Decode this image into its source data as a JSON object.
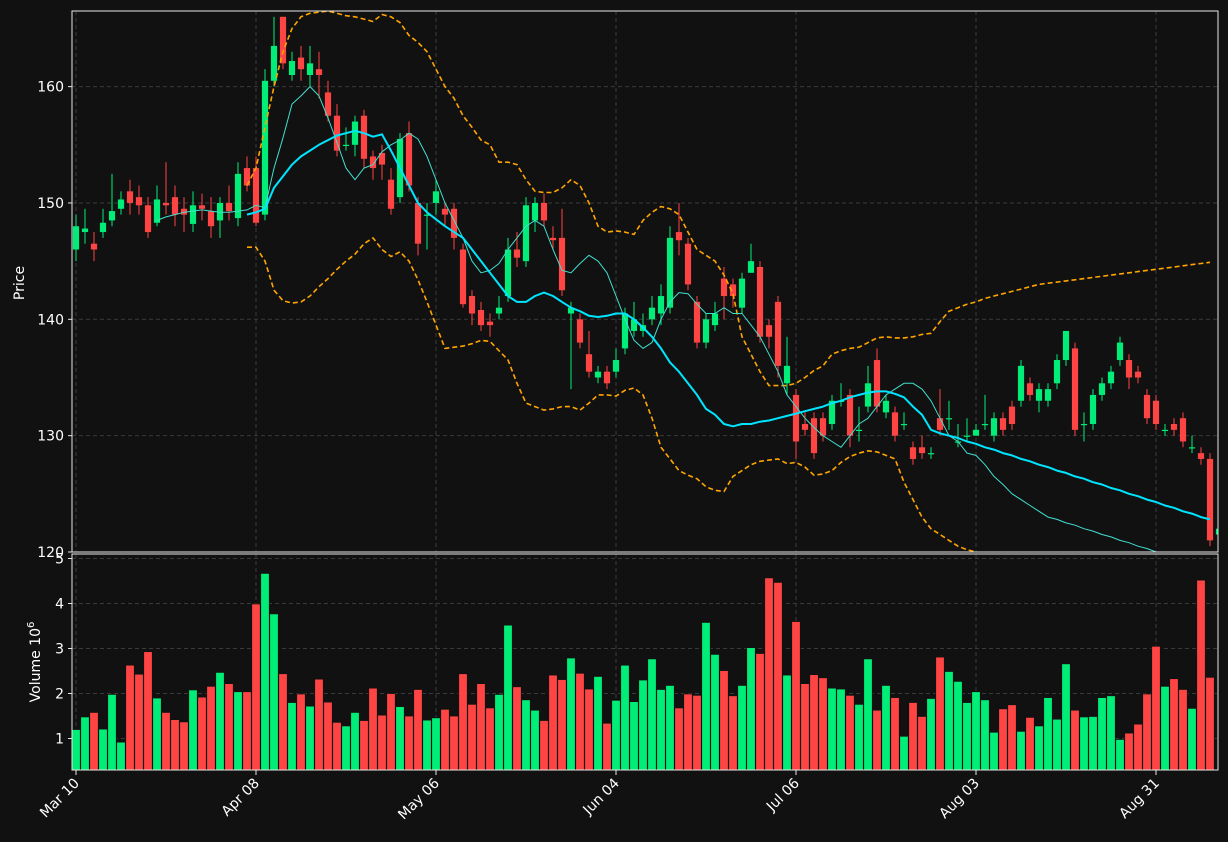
{
  "chart_data": {
    "type": "candlestick",
    "price_panel": {
      "ylabel": "Price",
      "ylim": [
        120,
        166.5
      ],
      "yticks": [
        "120",
        "130",
        "140",
        "150",
        "160"
      ],
      "grid": true
    },
    "volume_panel": {
      "ylabel": "Volume  10",
      "ylabel_exponent": "6",
      "ylim": [
        0.3,
        5.1
      ],
      "yticks": [
        "1",
        "2",
        "3",
        "4",
        "5"
      ],
      "grid": true
    },
    "x_tick_labels": [
      {
        "label": "Mar 10",
        "index": 0
      },
      {
        "label": "Apr 08",
        "index": 20
      },
      {
        "label": "May 06",
        "index": 40
      },
      {
        "label": "Jun 04",
        "index": 60
      },
      {
        "label": "Jul 06",
        "index": 80
      },
      {
        "label": "Aug 03",
        "index": 100
      },
      {
        "label": "Aug 31",
        "index": 120
      }
    ],
    "candles": [
      [
        146.0,
        148.0,
        145.0,
        149.0
      ],
      [
        147.5,
        147.8,
        146.5,
        149.5
      ],
      [
        146.5,
        146.0,
        145.0,
        147.5
      ],
      [
        147.5,
        148.3,
        147.0,
        149.5
      ],
      [
        148.5,
        149.3,
        148.0,
        152.5
      ],
      [
        149.5,
        150.3,
        149.0,
        151.0
      ],
      [
        151.0,
        150.0,
        149.0,
        152.0
      ],
      [
        150.5,
        149.8,
        149.0,
        151.5
      ],
      [
        149.8,
        147.5,
        147.0,
        150.5
      ],
      [
        148.3,
        150.3,
        148.0,
        151.5
      ],
      [
        150.0,
        149.8,
        149.0,
        153.5
      ],
      [
        150.5,
        149.0,
        148.0,
        151.5
      ],
      [
        149.5,
        149.0,
        147.5,
        150.5
      ],
      [
        148.2,
        149.8,
        147.5,
        151.0
      ],
      [
        149.8,
        149.5,
        148.5,
        150.8
      ],
      [
        149.3,
        148.0,
        147.0,
        150.5
      ],
      [
        148.5,
        150.0,
        147.0,
        150.5
      ],
      [
        150.0,
        149.3,
        148.5,
        151.5
      ],
      [
        148.7,
        152.5,
        148.0,
        153.5
      ],
      [
        153.0,
        151.5,
        151.0,
        154.0
      ],
      [
        153.0,
        148.3,
        148.0,
        154.0
      ],
      [
        149.0,
        160.5,
        148.5,
        161.5
      ],
      [
        160.5,
        163.5,
        160.0,
        166.0
      ],
      [
        166.0,
        162.0,
        161.5,
        166.0
      ],
      [
        161.0,
        162.2,
        160.5,
        163.0
      ],
      [
        162.5,
        161.5,
        160.5,
        163.5
      ],
      [
        161.0,
        162.0,
        160.0,
        163.5
      ],
      [
        161.5,
        161.0,
        159.0,
        163.0
      ],
      [
        159.5,
        157.5,
        157.0,
        160.5
      ],
      [
        157.5,
        154.5,
        154.0,
        158.5
      ],
      [
        155.0,
        155.0,
        154.5,
        156.5
      ],
      [
        155.0,
        157.0,
        154.0,
        157.5
      ],
      [
        157.5,
        153.8,
        153.0,
        158.0
      ],
      [
        154.0,
        153.0,
        152.0,
        154.5
      ],
      [
        154.3,
        153.3,
        152.0,
        155.0
      ],
      [
        152.0,
        149.5,
        149.0,
        153.0
      ],
      [
        150.5,
        155.5,
        150.0,
        156.0
      ],
      [
        156.0,
        151.5,
        151.0,
        157.0
      ],
      [
        150.0,
        146.5,
        145.5,
        150.5
      ],
      [
        148.9,
        149.0,
        146.0,
        150.0
      ],
      [
        150.0,
        151.0,
        149.0,
        152.0
      ],
      [
        149.5,
        149.0,
        148.0,
        150.0
      ],
      [
        149.5,
        147.0,
        146.0,
        150.0
      ],
      [
        146.0,
        141.3,
        141.0,
        146.5
      ],
      [
        142.0,
        140.5,
        139.5,
        142.5
      ],
      [
        140.8,
        139.5,
        139.0,
        141.5
      ],
      [
        139.8,
        139.5,
        138.5,
        140.5
      ],
      [
        140.5,
        141.0,
        140.0,
        142.0
      ],
      [
        142.0,
        146.0,
        141.5,
        147.0
      ],
      [
        146.0,
        145.3,
        144.5,
        147.5
      ],
      [
        145.0,
        149.8,
        144.5,
        150.5
      ],
      [
        148.5,
        150.0,
        147.5,
        150.5
      ],
      [
        150.0,
        148.5,
        148.0,
        150.8
      ],
      [
        147.0,
        146.8,
        146.0,
        148.0
      ],
      [
        147.0,
        142.5,
        142.0,
        149.5
      ],
      [
        140.5,
        141.0,
        134.0,
        141.5
      ],
      [
        140.0,
        138.0,
        137.5,
        140.5
      ],
      [
        137.0,
        135.5,
        135.0,
        139.0
      ],
      [
        135.0,
        135.5,
        134.5,
        136.0
      ],
      [
        135.5,
        134.5,
        134.0,
        136.0
      ],
      [
        135.5,
        136.5,
        135.0,
        137.5
      ],
      [
        137.5,
        140.5,
        137.0,
        141.0
      ],
      [
        139.0,
        140.0,
        138.5,
        141.5
      ],
      [
        139.0,
        139.5,
        138.5,
        140.5
      ],
      [
        140.0,
        141.0,
        139.5,
        142.0
      ],
      [
        140.5,
        142.0,
        139.5,
        143.0
      ],
      [
        141.0,
        147.0,
        140.5,
        148.0
      ],
      [
        147.5,
        146.8,
        145.5,
        150.0
      ],
      [
        146.5,
        143.0,
        142.5,
        147.0
      ],
      [
        141.5,
        138.0,
        137.5,
        142.0
      ],
      [
        138.0,
        140.0,
        137.5,
        140.5
      ],
      [
        139.5,
        140.5,
        139.0,
        141.5
      ],
      [
        143.5,
        142.0,
        140.0,
        144.5
      ],
      [
        143.0,
        142.0,
        141.0,
        143.5
      ],
      [
        141.0,
        143.5,
        140.5,
        144.0
      ],
      [
        144.0,
        145.0,
        144.0,
        146.5
      ],
      [
        144.5,
        138.5,
        138.0,
        145.0
      ],
      [
        139.5,
        138.5,
        137.5,
        140.0
      ],
      [
        141.5,
        136.0,
        135.0,
        142.0
      ],
      [
        134.5,
        136.0,
        133.5,
        138.5
      ],
      [
        133.5,
        129.5,
        128.0,
        134.0
      ],
      [
        131.0,
        130.5,
        130.0,
        132.0
      ],
      [
        131.5,
        128.5,
        128.0,
        132.0
      ],
      [
        131.5,
        130.0,
        129.5,
        132.0
      ],
      [
        131.0,
        133.0,
        130.5,
        133.5
      ],
      [
        133.0,
        133.0,
        132.5,
        134.5
      ],
      [
        133.5,
        130.0,
        129.0,
        134.0
      ],
      [
        130.5,
        130.5,
        129.5,
        132.5
      ],
      [
        132.5,
        134.5,
        132.0,
        136.0
      ],
      [
        136.5,
        132.5,
        132.0,
        137.5
      ],
      [
        132.0,
        133.0,
        131.5,
        133.5
      ],
      [
        132.0,
        130.0,
        129.5,
        132.5
      ],
      [
        131.0,
        131.0,
        130.5,
        132.0
      ],
      [
        129.0,
        128.0,
        127.5,
        129.5
      ],
      [
        129.0,
        128.5,
        128.0,
        130.0
      ],
      [
        128.5,
        128.5,
        128.0,
        129.0
      ],
      [
        131.5,
        130.5,
        130.0,
        134.0
      ],
      [
        131.5,
        131.5,
        130.5,
        133.0
      ],
      [
        129.5,
        129.5,
        129.0,
        131.0
      ],
      [
        130.0,
        130.0,
        129.5,
        131.5
      ],
      [
        130.0,
        130.5,
        130.0,
        131.0
      ],
      [
        131.0,
        131.0,
        130.5,
        133.5
      ],
      [
        130.0,
        131.5,
        129.5,
        132.0
      ],
      [
        131.5,
        130.5,
        130.0,
        132.0
      ],
      [
        132.5,
        131.0,
        130.5,
        133.0
      ],
      [
        133.0,
        136.0,
        132.5,
        136.5
      ],
      [
        134.5,
        133.5,
        133.0,
        135.0
      ],
      [
        133.0,
        134.0,
        132.0,
        134.5
      ],
      [
        133.0,
        134.0,
        132.5,
        134.5
      ],
      [
        134.5,
        136.5,
        134.0,
        137.0
      ],
      [
        136.5,
        139.0,
        136.0,
        139.0
      ],
      [
        137.5,
        130.5,
        130.0,
        138.0
      ],
      [
        131.0,
        131.0,
        129.5,
        132.0
      ],
      [
        131.0,
        133.5,
        130.5,
        134.0
      ],
      [
        133.5,
        134.5,
        133.0,
        135.0
      ],
      [
        134.5,
        135.5,
        134.0,
        136.0
      ],
      [
        136.5,
        138.0,
        136.0,
        138.5
      ],
      [
        136.5,
        135.0,
        134.0,
        137.0
      ],
      [
        135.5,
        135.0,
        134.5,
        136.0
      ],
      [
        133.5,
        131.5,
        131.0,
        134.0
      ],
      [
        133.0,
        131.0,
        130.5,
        133.5
      ],
      [
        130.5,
        130.5,
        130.0,
        131.0
      ],
      [
        131.0,
        130.5,
        130.0,
        131.5
      ],
      [
        131.5,
        129.5,
        129.0,
        132.0
      ],
      [
        129.0,
        129.0,
        128.5,
        130.0
      ],
      [
        128.5,
        128.0,
        127.5,
        129.0
      ],
      [
        128.0,
        121.0,
        120.5,
        128.5
      ],
      [
        121.5,
        122.0,
        121.0,
        122.5
      ]
    ],
    "volume": [
      1.2,
      1.48,
      1.58,
      1.21,
      1.98,
      0.92,
      2.63,
      2.43,
      2.93,
      1.9,
      1.58,
      1.42,
      1.37,
      2.08,
      1.92,
      2.16,
      2.47,
      2.22,
      2.04,
      2.04,
      3.99,
      4.67,
      3.77,
      2.44,
      1.8,
      1.99,
      1.72,
      2.32,
      1.81,
      1.36,
      1.28,
      1.58,
      1.4,
      2.12,
      1.52,
      2.0,
      1.71,
      1.5,
      2.09,
      1.41,
      1.46,
      1.65,
      1.5,
      2.44,
      1.76,
      2.22,
      1.68,
      1.98,
      3.52,
      2.15,
      1.86,
      1.63,
      1.4,
      2.41,
      2.31,
      2.79,
      2.45,
      2.1,
      2.38,
      1.34,
      1.85,
      2.63,
      1.82,
      2.3,
      2.77,
      2.09,
      2.18,
      1.68,
      1.99,
      1.96,
      3.58,
      2.87,
      2.51,
      1.95,
      2.18,
      3.02,
      2.89,
      4.57,
      4.47,
      2.41,
      3.6,
      2.22,
      2.42,
      2.35,
      2.12,
      2.1,
      1.96,
      1.76,
      2.77,
      1.63,
      2.18,
      1.91,
      1.05,
      1.8,
      1.49,
      1.89,
      2.81,
      2.49,
      2.27,
      1.8,
      2.04,
      1.86,
      1.14,
      1.66,
      1.75,
      1.16,
      1.47,
      1.28,
      1.91,
      1.43,
      2.66,
      1.63,
      1.48,
      1.49,
      1.91,
      1.95,
      0.98,
      1.12,
      1.32,
      1.99,
      3.05,
      2.16,
      2.33,
      2.09,
      1.67,
      4.52,
      2.36
    ],
    "ma_fast": {
      "color": "#40e0d0",
      "start": 9,
      "values": [
        148.5,
        148.8,
        149.0,
        149.2,
        149.3,
        149.4,
        149.3,
        149.2,
        149.2,
        149.3,
        149.4,
        149.8,
        149.6,
        153.0,
        155.6,
        158.5,
        159.2,
        160.0,
        159.2,
        157.3,
        155.2,
        153.0,
        152.0,
        153.0,
        153.3,
        154.4,
        155.0,
        155.4,
        156.0,
        155.5,
        154.0,
        152.0,
        150.0,
        148.5,
        147.0,
        145.0,
        144.0,
        144.2,
        144.8,
        146.0,
        147.0,
        148.0,
        148.5,
        148.0,
        146.0,
        144.2,
        144.0,
        144.8,
        145.5,
        145.0,
        144.0,
        142.0,
        140.0,
        138.2,
        137.5,
        138.0,
        140.0,
        141.5,
        142.3,
        142.2,
        141.3,
        140.5,
        140.5,
        141.0,
        140.5,
        140.5,
        139.5,
        138.5,
        137.0,
        135.5,
        133.5,
        132.5,
        131.5,
        130.7,
        130.0,
        129.5,
        129.0,
        130.0,
        131.0,
        131.5,
        132.5,
        133.5,
        134.0,
        134.5,
        134.5,
        134.0,
        133.0,
        131.5,
        130.0,
        129.5,
        128.5,
        128.3,
        127.5,
        126.5,
        125.8,
        125.0,
        124.5,
        124.0,
        123.5,
        123.0,
        122.8,
        122.5,
        122.3,
        122.0,
        121.8,
        121.5,
        121.3,
        121.0,
        120.8,
        120.5,
        120.3,
        120.0,
        119.8
      ]
    },
    "ma_slow": {
      "color": "#00e5ff",
      "start": 19,
      "values": [
        149.0,
        149.2,
        149.5,
        151.3,
        152.3,
        153.3,
        154.0,
        154.5,
        155.0,
        155.4,
        155.8,
        156.0,
        156.2,
        156.0,
        155.7,
        155.9,
        154.5,
        153.0,
        151.5,
        150.0,
        149.2,
        148.6,
        148.0,
        147.5,
        147.0,
        146.0,
        145.0,
        144.0,
        143.0,
        142.0,
        141.5,
        141.5,
        142.0,
        142.3,
        142.0,
        141.5,
        141.0,
        140.7,
        140.3,
        140.2,
        140.3,
        140.5,
        140.5,
        140.0,
        139.3,
        138.5,
        137.5,
        136.3,
        135.5,
        134.5,
        133.5,
        132.3,
        131.8,
        131.0,
        130.8,
        131.0,
        131.0,
        131.2,
        131.3,
        131.5,
        131.7,
        131.9,
        132.1,
        132.3,
        132.5,
        132.8,
        133.0,
        133.3,
        133.5,
        133.7,
        133.8,
        133.8,
        133.6,
        133.3,
        132.5,
        131.8,
        130.5,
        130.2,
        130.0,
        129.8,
        129.5,
        129.3,
        129.0,
        128.8,
        128.5,
        128.3,
        128.0,
        127.8,
        127.5,
        127.3,
        127.0,
        126.8,
        126.5,
        126.3,
        126.0,
        125.8,
        125.5,
        125.3,
        125.0,
        124.8,
        124.5,
        124.3,
        124.0,
        123.8,
        123.5,
        123.3,
        123.0,
        122.8
      ]
    },
    "bollinger": {
      "color": "#ffa500",
      "style": "dashed",
      "start": 19,
      "upper": [
        151.5,
        153.0,
        156.5,
        160.0,
        163.0,
        165.0,
        166.0,
        166.3,
        166.4,
        166.5,
        166.3,
        166.1,
        166.0,
        165.8,
        165.6,
        166.2,
        166.0,
        165.5,
        164.4,
        163.8,
        163.0,
        161.5,
        160.0,
        159.0,
        157.5,
        156.5,
        155.4,
        155.0,
        153.5,
        153.5,
        153.3,
        152.0,
        151.0,
        150.9,
        150.9,
        151.3,
        152.0,
        151.5,
        150.0,
        148.0,
        147.5,
        147.6,
        147.5,
        147.3,
        148.5,
        149.2,
        149.7,
        149.5,
        149.0,
        147.5,
        146.0,
        145.5,
        145.0,
        143.8,
        142.2,
        138.5,
        137.0,
        135.5,
        134.3,
        134.3,
        134.3,
        134.5,
        135.0,
        135.6,
        136.0,
        137.0,
        137.3,
        137.5,
        137.6,
        138.0,
        138.4,
        138.5,
        138.4,
        138.4,
        138.5,
        138.7,
        138.8,
        139.8,
        140.7,
        141.0,
        141.3,
        141.5,
        141.8,
        142.0,
        142.2,
        142.4,
        142.6,
        142.8,
        143.0,
        143.1,
        143.2,
        143.3,
        143.4,
        143.5,
        143.6,
        143.7,
        143.8,
        143.9,
        144.0,
        144.1,
        144.2,
        144.3,
        144.4,
        144.5,
        144.6,
        144.7,
        144.8,
        144.9
      ],
      "lower": [
        146.2,
        146.2,
        145.0,
        142.5,
        141.6,
        141.4,
        141.5,
        142.0,
        142.8,
        143.5,
        144.3,
        145.0,
        145.6,
        146.5,
        147.0,
        146.0,
        145.4,
        145.8,
        145.0,
        143.4,
        141.5,
        139.5,
        137.5,
        137.6,
        137.7,
        137.9,
        138.2,
        138.1,
        137.3,
        136.5,
        134.5,
        132.8,
        132.5,
        132.2,
        132.3,
        132.5,
        132.5,
        132.2,
        132.8,
        133.5,
        133.5,
        133.4,
        133.9,
        134.1,
        133.5,
        131.5,
        129.0,
        128.0,
        127.0,
        126.6,
        126.3,
        125.6,
        125.3,
        125.2,
        126.5,
        127.0,
        127.5,
        127.8,
        127.9,
        128.0,
        127.6,
        127.7,
        127.3,
        126.6,
        126.7,
        127.0,
        127.7,
        128.2,
        128.5,
        128.7,
        128.6,
        128.3,
        128.0,
        126.0,
        124.5,
        123.0,
        122.0,
        121.5,
        121.0,
        120.5,
        120.2,
        120.0,
        119.8,
        119.6,
        119.4,
        119.2,
        119.0,
        118.8,
        118.6,
        118.4,
        118.2,
        118.0,
        117.8,
        117.6,
        117.4,
        117.2,
        117.0,
        116.8,
        116.6,
        116.4,
        116.2,
        116.0,
        115.8,
        115.6,
        115.4,
        115.2,
        115.0,
        114.8
      ]
    },
    "up_color": "#00ee77",
    "down_color": "#ff4444",
    "background": "#111111",
    "grid_color": "#3a3a3a"
  }
}
